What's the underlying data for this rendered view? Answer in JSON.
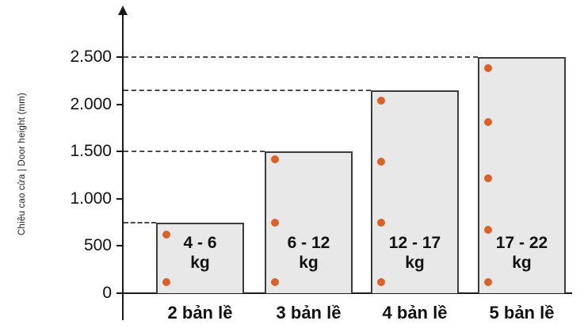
{
  "chart_data": {
    "type": "bar",
    "title": "",
    "ylabel": "Chiều cao cửa | Door height (mm)",
    "xlabel": "",
    "ylim": [
      0,
      2500
    ],
    "unit": "mm",
    "grid": "off",
    "legend": "none",
    "reference_lines": "dashed horizontal line from y-axis to the top of each bar",
    "y_ticks": [
      {
        "value": 0,
        "label": "0"
      },
      {
        "value": 500,
        "label": "500"
      },
      {
        "value": 1000,
        "label": "1.000"
      },
      {
        "value": 1500,
        "label": "1.500"
      },
      {
        "value": 2000,
        "label": "2.000"
      },
      {
        "value": 2500,
        "label": "2.500"
      }
    ],
    "categories": [
      "2 bản lề",
      "3 bản lề",
      "4 bản lề",
      "5 bản lề"
    ],
    "bars": [
      {
        "category": "2 bản lề",
        "door_height_mm": 750,
        "weight_range_line1": "4 - 6",
        "weight_range_line2": "kg",
        "hinge_positions_mm": [
          620,
          120
        ]
      },
      {
        "category": "3 bản lề",
        "door_height_mm": 1500,
        "weight_range_line1": "6 - 12",
        "weight_range_line2": "kg",
        "hinge_positions_mm": [
          1420,
          745,
          120
        ]
      },
      {
        "category": "4 bản lề",
        "door_height_mm": 2150,
        "weight_range_line1": "12 - 17",
        "weight_range_line2": "kg",
        "hinge_positions_mm": [
          2040,
          1390,
          750,
          120
        ]
      },
      {
        "category": "5 bản lề",
        "door_height_mm": 2500,
        "weight_range_line1": "17 - 22",
        "weight_range_line2": "kg",
        "hinge_positions_mm": [
          2380,
          1810,
          1220,
          670,
          120
        ]
      }
    ],
    "colors": {
      "bar_fill": "#e8e8e8",
      "bar_border": "#3c3c3c",
      "hinge_dot": "#d9622b",
      "axis": "#1a1a1a",
      "dashed_line": "#4a4a4a",
      "text": "#111111"
    }
  }
}
